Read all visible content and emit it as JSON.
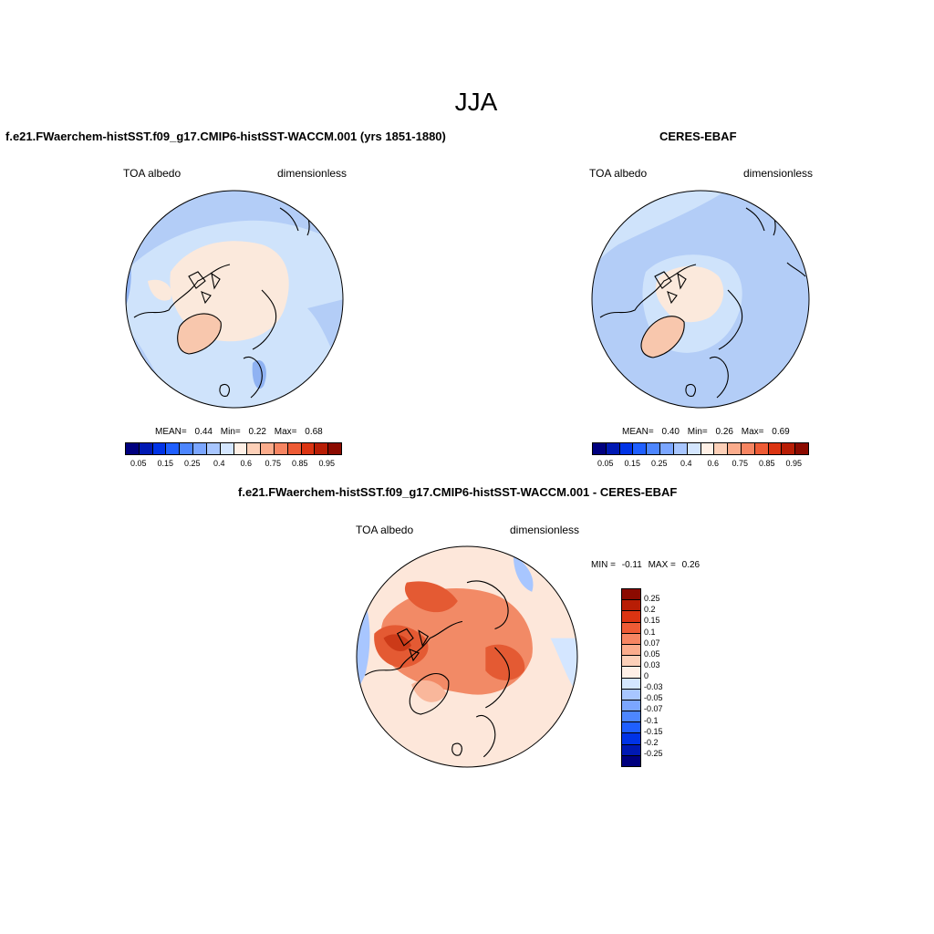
{
  "figure": {
    "season": "JJA"
  },
  "panel_model": {
    "title": "f.e21.FWaerchem-histSST.f09_g17.CMIP6-histSST-WACCM.001 (yrs 1851-1880)",
    "left_label": "TOA albedo",
    "right_label": "dimensionless",
    "stats": {
      "mean_label": "MEAN=",
      "mean": "0.44",
      "min_label": "Min=",
      "min": "0.22",
      "max_label": "Max=",
      "max": "0.68"
    }
  },
  "panel_obs": {
    "title": "CERES-EBAF",
    "left_label": "TOA albedo",
    "right_label": "dimensionless",
    "stats": {
      "mean_label": "MEAN=",
      "mean": "0.40",
      "min_label": "Min=",
      "min": "0.26",
      "max_label": "Max=",
      "max": "0.69"
    }
  },
  "panel_diff": {
    "title": "f.e21.FWaerchem-histSST.f09_g17.CMIP6-histSST-WACCM.001 - CERES-EBAF",
    "left_label": "TOA albedo",
    "right_label": "dimensionless",
    "minmax": {
      "min_label": "MIN =",
      "min": "-0.11",
      "max_label": "MAX =",
      "max": "0.26"
    }
  },
  "colorbar_abs": {
    "colors": [
      "#00007f",
      "#0019b3",
      "#0033e6",
      "#1f5fff",
      "#4d86ff",
      "#7ba6ff",
      "#a8c6ff",
      "#d4e6ff",
      "#fff0e6",
      "#fdd0b8",
      "#fbac8c",
      "#f68562",
      "#ee5b35",
      "#db3412",
      "#b81d05",
      "#8b0a00"
    ],
    "tick_labels": [
      "0.05",
      "0.15",
      "0.25",
      "0.4",
      "0.6",
      "0.75",
      "0.85",
      "0.95"
    ]
  },
  "colorbar_diff": {
    "colors": [
      "#8b0a00",
      "#b81d05",
      "#db3412",
      "#ee5b35",
      "#f68562",
      "#fbac8c",
      "#fdd0b8",
      "#fff0e6",
      "#d4e6ff",
      "#a8c6ff",
      "#7ba6ff",
      "#4d86ff",
      "#1f5fff",
      "#0033e6",
      "#0019b3",
      "#00007f"
    ],
    "tick_labels": [
      "0.25",
      "0.2",
      "0.15",
      "0.1",
      "0.07",
      "0.05",
      "0.03",
      "0",
      "-0.03",
      "-0.05",
      "-0.07",
      "-0.1",
      "-0.15",
      "-0.2",
      "-0.25"
    ]
  },
  "map_colors": {
    "ocean_light": "#cfe3fb",
    "ocean_mid": "#b3cdf7",
    "ocean_deep": "#8fb2f2",
    "ice": "#fbe9dc",
    "greenland": "#f8c7ad",
    "diff_base": "#fde7da",
    "diff_warm1": "#f9b79b",
    "diff_warm2": "#f28a66",
    "diff_warm3": "#e45a33",
    "diff_warm4": "#cc3a18",
    "diff_cool": "#a8c6ff"
  }
}
